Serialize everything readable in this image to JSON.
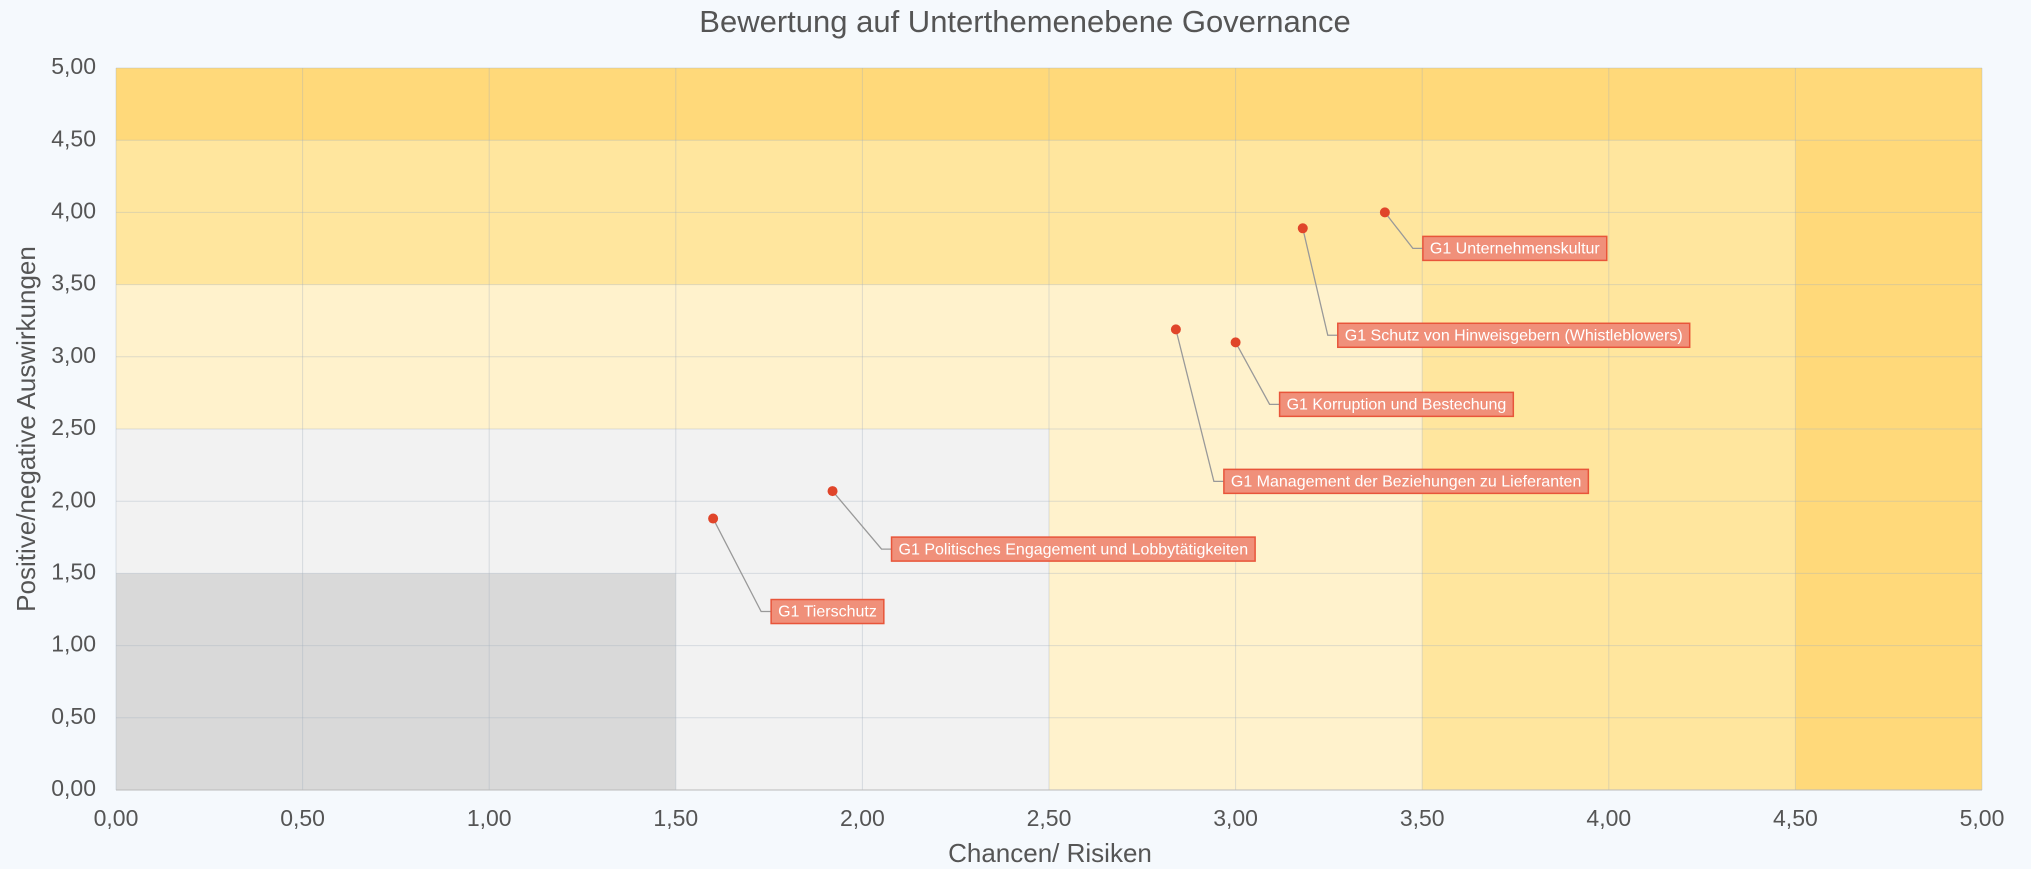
{
  "chart_data": {
    "type": "scatter",
    "title": "Bewertung auf Unterthemenebene Governance",
    "xlabel": "Chancen/ Risiken",
    "ylabel": "Positive/negative Auswirkungen",
    "point_color": "#e0452a",
    "grid": true,
    "xlim": [
      0,
      5
    ],
    "ylim": [
      0,
      5
    ],
    "xticks": [
      {
        "value": 0,
        "label": "0,00"
      },
      {
        "value": 0.5,
        "label": "0,50"
      },
      {
        "value": 1,
        "label": "1,00"
      },
      {
        "value": 1.5,
        "label": "1,50"
      },
      {
        "value": 2,
        "label": "2,00"
      },
      {
        "value": 2.5,
        "label": "2,50"
      },
      {
        "value": 3,
        "label": "3,00"
      },
      {
        "value": 3.5,
        "label": "3,50"
      },
      {
        "value": 4,
        "label": "4,00"
      },
      {
        "value": 4.5,
        "label": "4,50"
      },
      {
        "value": 5,
        "label": "5,00"
      }
    ],
    "yticks": [
      {
        "value": 0,
        "label": "0,00"
      },
      {
        "value": 0.5,
        "label": "0,50"
      },
      {
        "value": 1,
        "label": "1,00"
      },
      {
        "value": 1.5,
        "label": "1,50"
      },
      {
        "value": 2,
        "label": "2,00"
      },
      {
        "value": 2.5,
        "label": "2,50"
      },
      {
        "value": 3,
        "label": "3,00"
      },
      {
        "value": 3.5,
        "label": "3,50"
      },
      {
        "value": 4,
        "label": "4,00"
      },
      {
        "value": 4.5,
        "label": "4,50"
      },
      {
        "value": 5,
        "label": "5,00"
      }
    ],
    "labels": [
      "G1 Unternehmenskultur",
      "G1 Schutz von Hinweisgebern (Whistleblowers)",
      "G1 Korruption und Bestechung",
      "G1 Management der Beziehungen zu Lieferanten",
      "G1 Politisches Engagement und Lobbytätigkeiten",
      "G1 Tierschutz"
    ],
    "x": [
      3.4,
      3.18,
      3.0,
      2.84,
      1.92,
      1.6
    ],
    "values": [
      4.0,
      3.89,
      3.1,
      3.19,
      2.07,
      1.88
    ]
  }
}
